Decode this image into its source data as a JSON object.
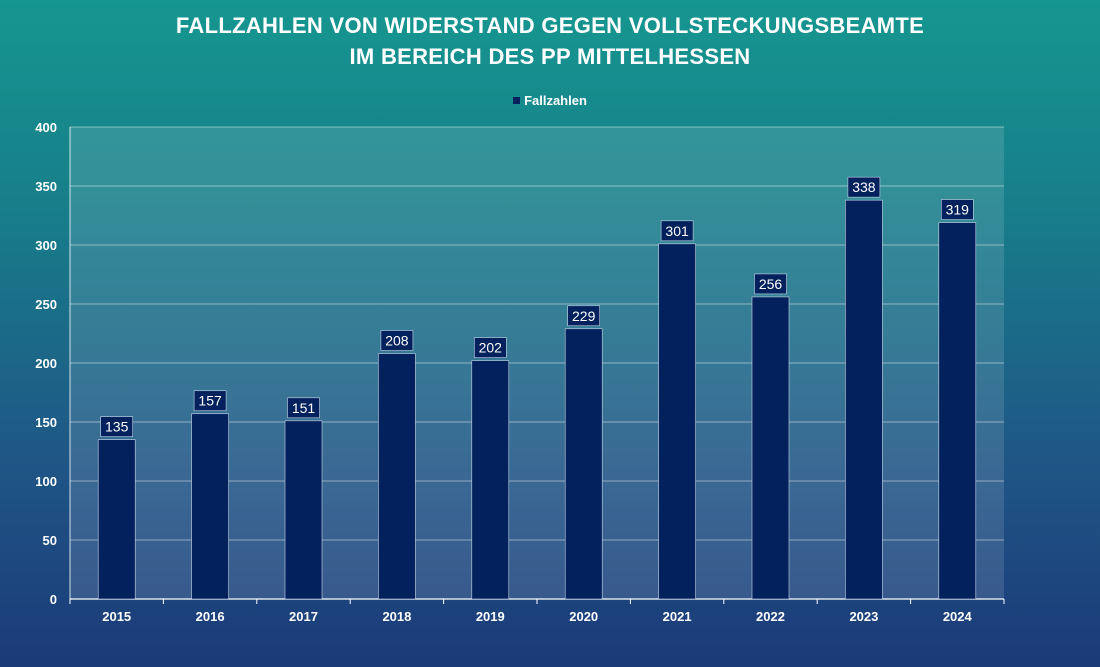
{
  "chart_data": {
    "type": "bar",
    "title_line1": "FALLZAHLEN VON WIDERSTAND GEGEN VOLLSTECKUNGSBEAMTE",
    "title_line2": "IM BEREICH DES PP MITTELHESSEN",
    "categories": [
      "2015",
      "2016",
      "2017",
      "2018",
      "2019",
      "2020",
      "2021",
      "2022",
      "2023",
      "2024"
    ],
    "series": [
      {
        "name": "Fallzahlen",
        "values": [
          135,
          157,
          151,
          208,
          202,
          229,
          301,
          256,
          338,
          319
        ]
      }
    ],
    "ylim": [
      0,
      400
    ],
    "yticks": [
      0,
      50,
      100,
      150,
      200,
      250,
      300,
      350,
      400
    ],
    "grid": true,
    "legend_position": "top-center",
    "bar_color": "#03215c",
    "label_box_color": "#03215c"
  }
}
